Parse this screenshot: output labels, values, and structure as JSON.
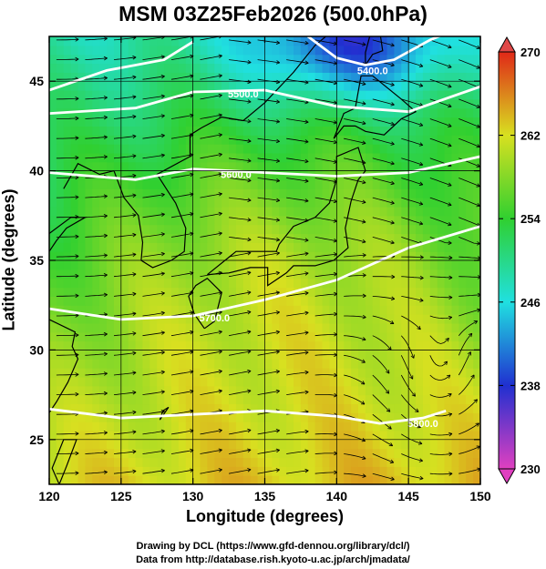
{
  "chart_data": {
    "type": "heatmap",
    "title": "MSM 03Z25Feb2026 (500.0hPa)",
    "xlabel": "Longitude (degrees)",
    "ylabel": "Latitude  (degrees)",
    "x_range": [
      120,
      150
    ],
    "y_range": [
      22.5,
      47.5
    ],
    "x_ticks": [
      "120",
      "125",
      "130",
      "135",
      "140",
      "145",
      "150"
    ],
    "y_ticks": [
      "25",
      "30",
      "35",
      "40",
      "45"
    ],
    "grid": true,
    "colorbar": {
      "min": 230,
      "max": 270,
      "ticks": [
        "230",
        "238",
        "246",
        "254",
        "262",
        "270"
      ],
      "position": "right"
    },
    "contours": [
      {
        "label": "5400.0"
      },
      {
        "label": "5500.0"
      },
      {
        "label": "5600.0"
      },
      {
        "label": "5700.0"
      },
      {
        "label": "5800.0"
      }
    ],
    "overlays": [
      "coastlines",
      "streamlines"
    ]
  },
  "credits": {
    "line1": "Drawing by DCL (https://www.gfd-dennou.org/library/dcl/)",
    "line2": "Data from http://database.rish.kyoto-u.ac.jp/arch/jmadata/"
  }
}
